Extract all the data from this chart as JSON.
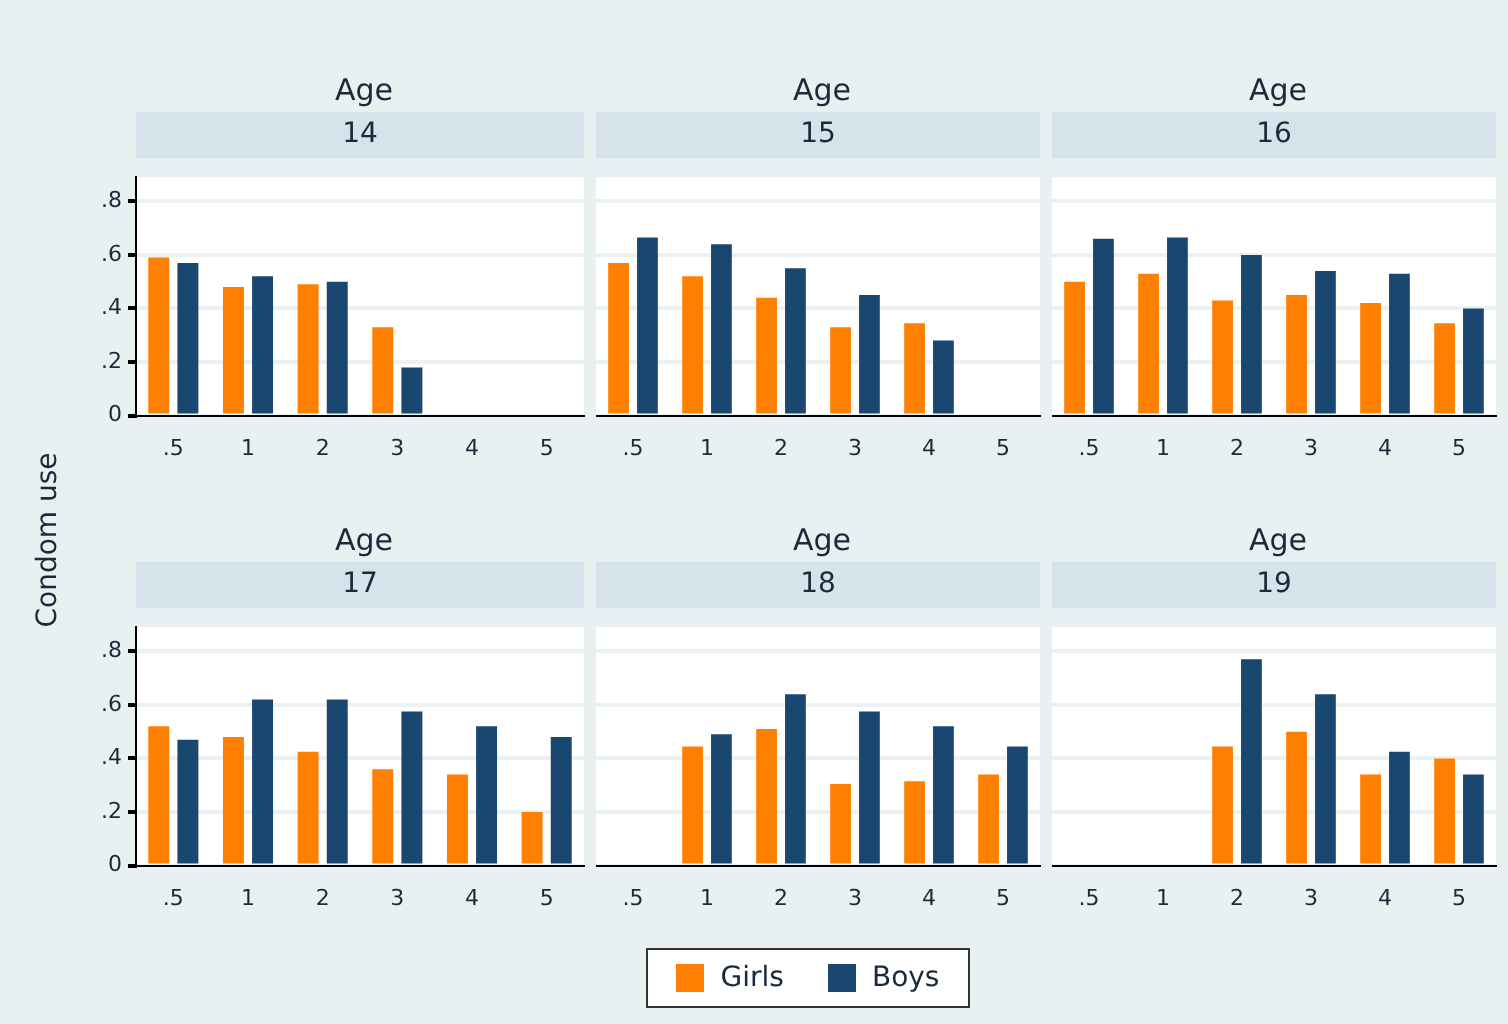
{
  "chart_data": [
    {
      "type": "bar",
      "title": "Age",
      "subtitle": "14",
      "ylabel": "Condom use",
      "categories": [
        ".5",
        "1",
        "2",
        "3",
        "4",
        "5"
      ],
      "ylim": [
        0,
        0.89
      ],
      "yticks": [
        0,
        {
          "value": 0.2,
          "label": ".2"
        },
        {
          "value": 0.4,
          "label": ".4"
        },
        {
          "value": 0.6,
          "label": ".6"
        },
        {
          "value": 0.8,
          "label": ".8"
        }
      ],
      "grid": "y",
      "legend": "bottom",
      "series": [
        {
          "name": "Girls",
          "color": "#ff7f00",
          "values": [
            0.59,
            0.48,
            0.49,
            0.33,
            null,
            null
          ]
        },
        {
          "name": "Boys",
          "color": "#1a476f",
          "values": [
            0.57,
            0.52,
            0.5,
            0.18,
            null,
            null
          ]
        }
      ]
    },
    {
      "type": "bar",
      "title": "Age",
      "subtitle": "15",
      "categories": [
        ".5",
        "1",
        "2",
        "3",
        "4",
        "5"
      ],
      "ylim": [
        0,
        0.89
      ],
      "yticks": [
        {
          "value": 0,
          "label": null
        },
        {
          "value": 0.2,
          "label": null
        },
        {
          "value": 0.4,
          "label": null
        },
        {
          "value": 0.6,
          "label": null
        },
        {
          "value": 0.8,
          "label": null
        }
      ],
      "grid": "y",
      "tick_labels": "x",
      "series": [
        {
          "color": "#ff7f00",
          "values": [
            0.57,
            0.52,
            0.44,
            0.33,
            0.345,
            null
          ]
        },
        {
          "color": "#1a476f",
          "values": [
            0.665,
            0.64,
            0.55,
            0.45,
            0.28,
            null
          ]
        }
      ]
    },
    {
      "type": "bar",
      "title": "Age",
      "subtitle": "16",
      "categories": [
        ".5",
        "1",
        "2",
        "3",
        "4",
        "5"
      ],
      "ylim": [
        0,
        0.89
      ],
      "yticks": [
        {
          "value": 0,
          "label": null
        },
        {
          "value": 0.2,
          "label": null
        },
        {
          "value": 0.4,
          "label": null
        },
        {
          "value": 0.6,
          "label": null
        },
        {
          "value": 0.8,
          "label": null
        }
      ],
      "grid": "y",
      "tick_labels": "x",
      "series": [
        {
          "color": "#ff7f00",
          "values": [
            0.5,
            0.53,
            0.43,
            0.45,
            0.42,
            0.345
          ]
        },
        {
          "color": "#1a476f",
          "values": [
            0.66,
            0.665,
            0.6,
            0.54,
            0.53,
            0.4
          ]
        }
      ]
    },
    {
      "type": "bar",
      "title": "Age",
      "subtitle": "17",
      "categories": [
        ".5",
        "1",
        "2",
        "3",
        "4",
        "5"
      ],
      "ylim": [
        0,
        0.89
      ],
      "yticks": [
        0,
        {
          "value": 0.2,
          "label": ".2"
        },
        {
          "value": 0.4,
          "label": ".4"
        },
        {
          "value": 0.6,
          "label": ".6"
        },
        {
          "value": 0.8,
          "label": ".8"
        }
      ],
      "grid": "y",
      "series": [
        {
          "color": "#ff7f00",
          "values": [
            0.52,
            0.48,
            0.425,
            0.36,
            0.34,
            0.2
          ]
        },
        {
          "color": "#1a476f",
          "values": [
            0.47,
            0.62,
            0.62,
            0.575,
            0.52,
            0.48
          ]
        }
      ]
    },
    {
      "type": "bar",
      "title": "Age",
      "subtitle": "18",
      "categories": [
        ".5",
        "1",
        "2",
        "3",
        "4",
        "5"
      ],
      "ylim": [
        0,
        0.89
      ],
      "yticks": [
        {
          "value": 0,
          "label": null
        },
        {
          "value": 0.2,
          "label": null
        },
        {
          "value": 0.4,
          "label": null
        },
        {
          "value": 0.6,
          "label": null
        },
        {
          "value": 0.8,
          "label": null
        }
      ],
      "grid": "y",
      "tick_labels": "x",
      "series": [
        {
          "color": "#ff7f00",
          "values": [
            null,
            0.445,
            0.51,
            0.305,
            0.315,
            0.34
          ]
        },
        {
          "color": "#1a476f",
          "values": [
            null,
            0.49,
            0.64,
            0.575,
            0.52,
            0.445
          ]
        }
      ]
    },
    {
      "type": "bar",
      "title": "Age",
      "subtitle": "19",
      "categories": [
        ".5",
        "1",
        "2",
        "3",
        "4",
        "5"
      ],
      "ylim": [
        0,
        0.89
      ],
      "yticks": [
        {
          "value": 0,
          "label": null
        },
        {
          "value": 0.2,
          "label": null
        },
        {
          "value": 0.4,
          "label": null
        },
        {
          "value": 0.6,
          "label": null
        },
        {
          "value": 0.8,
          "label": null
        }
      ],
      "grid": "y",
      "tick_labels": "x",
      "series": [
        {
          "color": "#ff7f00",
          "values": [
            null,
            null,
            0.445,
            0.5,
            0.34,
            0.4
          ]
        },
        {
          "color": "#1a476f",
          "values": [
            null,
            null,
            0.77,
            0.64,
            0.425,
            0.34
          ]
        }
      ]
    }
  ]
}
